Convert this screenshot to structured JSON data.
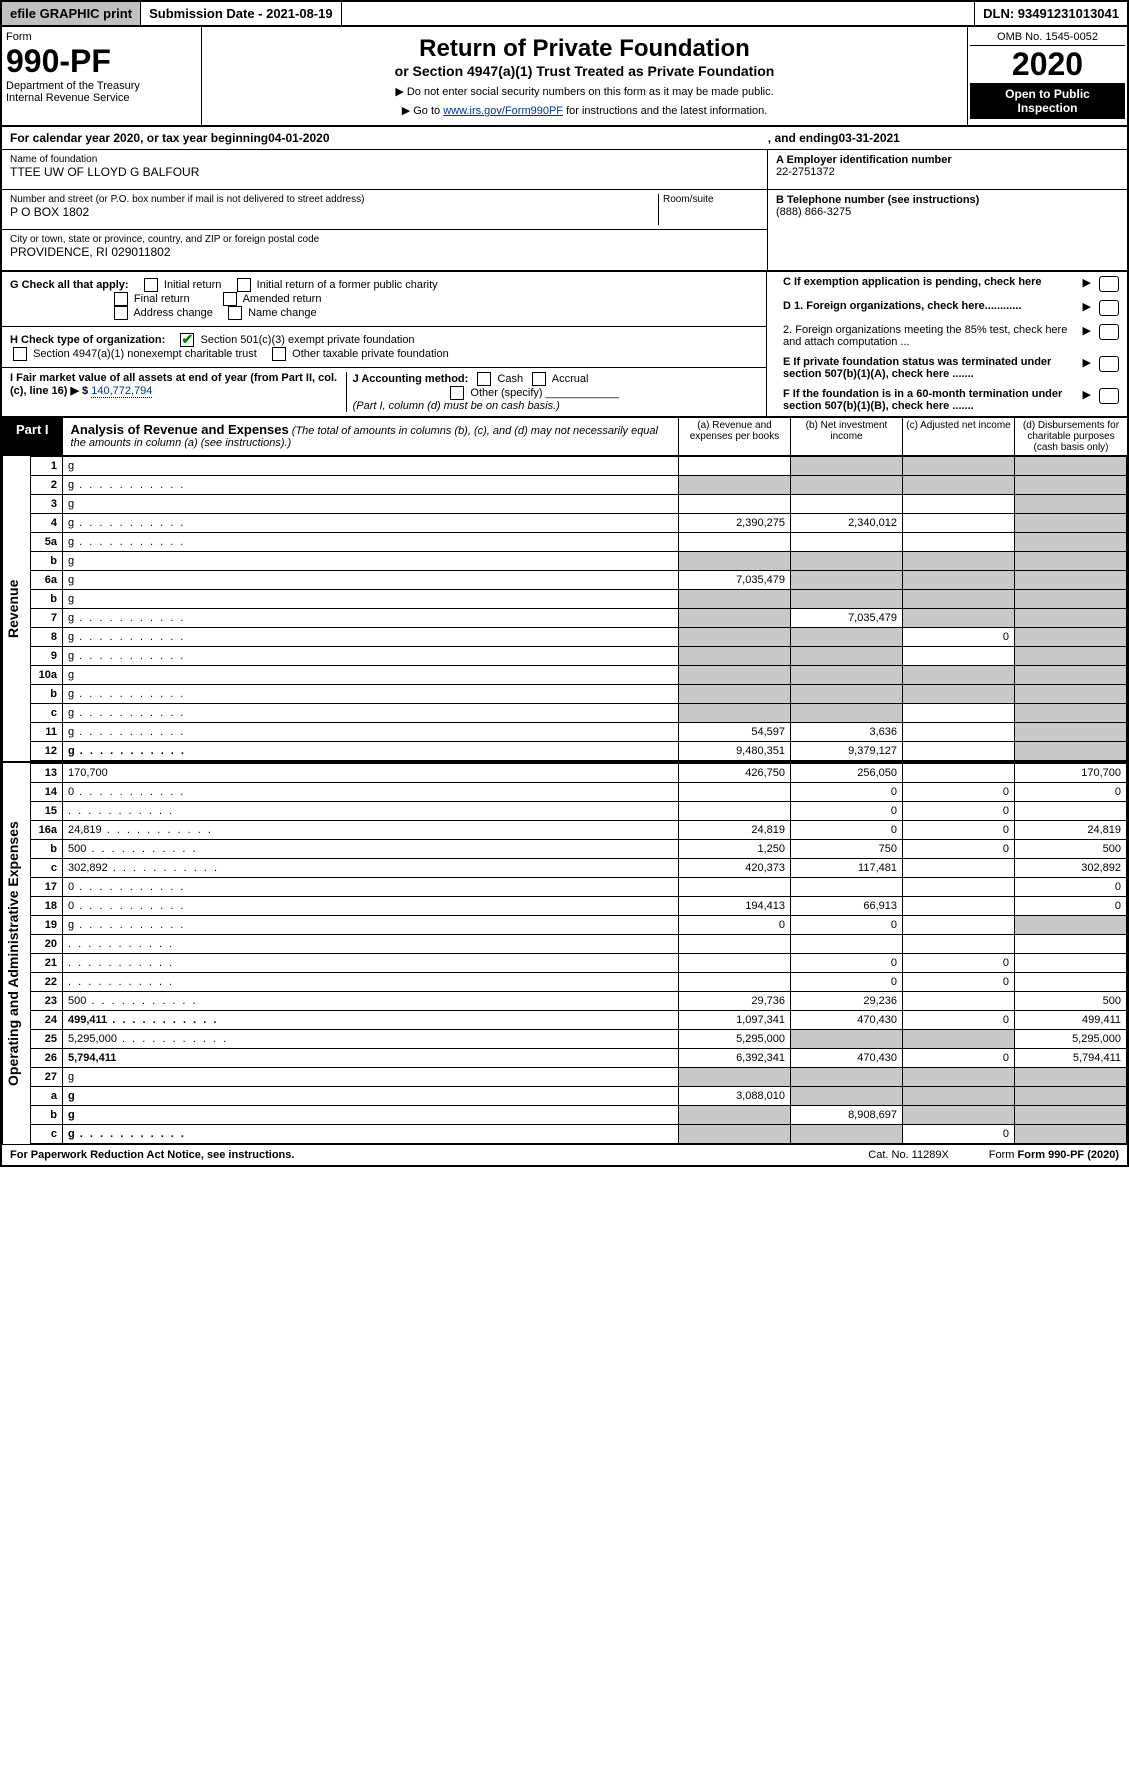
{
  "top": {
    "efile": "efile GRAPHIC print",
    "submission_label": "Submission Date - 2021-08-19",
    "dln": "DLN: 93491231013041"
  },
  "header": {
    "form_label": "Form",
    "form_num": "990-PF",
    "dept": "Department of the Treasury",
    "irs": "Internal Revenue Service",
    "title": "Return of Private Foundation",
    "subtitle": "or Section 4947(a)(1) Trust Treated as Private Foundation",
    "inst1": "▶ Do not enter social security numbers on this form as it may be made public.",
    "inst2_pre": "▶ Go to ",
    "inst2_link": "www.irs.gov/Form990PF",
    "inst2_post": " for instructions and the latest information.",
    "omb": "OMB No. 1545-0052",
    "year": "2020",
    "open": "Open to Public Inspection"
  },
  "calendar": {
    "pre": "For calendar year 2020, or tax year beginning ",
    "begin": "04-01-2020",
    "mid": " , and ending ",
    "end": "03-31-2021"
  },
  "name_block": {
    "label": "Name of foundation",
    "value": "TTEE UW OF LLOYD G BALFOUR",
    "addr_label": "Number and street (or P.O. box number if mail is not delivered to street address)",
    "addr": "P O BOX 1802",
    "room_label": "Room/suite",
    "city_label": "City or town, state or province, country, and ZIP or foreign postal code",
    "city": "PROVIDENCE, RI  029011802"
  },
  "boxA": {
    "label": "A Employer identification number",
    "value": "22-2751372"
  },
  "boxB": {
    "label": "B Telephone number (see instructions)",
    "value": "(888) 866-3275"
  },
  "boxC": "C If exemption application is pending, check here",
  "boxD1": "D 1. Foreign organizations, check here............",
  "boxD2": "2. Foreign organizations meeting the 85% test, check here and attach computation ...",
  "boxE": "E If private foundation status was terminated under section 507(b)(1)(A), check here .......",
  "boxF": "F If the foundation is in a 60-month termination under section 507(b)(1)(B), check here .......",
  "checkG": {
    "label": "G Check all that apply:",
    "opts": [
      "Initial return",
      "Initial return of a former public charity",
      "Final return",
      "Amended return",
      "Address change",
      "Name change"
    ]
  },
  "checkH": {
    "label": "H Check type of organization:",
    "opt1": "Section 501(c)(3) exempt private foundation",
    "opt2": "Section 4947(a)(1) nonexempt charitable trust",
    "opt3": "Other taxable private foundation"
  },
  "boxI": {
    "label": "I Fair market value of all assets at end of year (from Part II, col. (c), line 16) ▶ $",
    "value": "140,772,794"
  },
  "boxJ": {
    "label": "J Accounting method:",
    "cash": "Cash",
    "accrual": "Accrual",
    "other": "Other (specify)",
    "note": "(Part I, column (d) must be on cash basis.)"
  },
  "part1": {
    "tab": "Part I",
    "title": "Analysis of Revenue and Expenses",
    "note": " (The total of amounts in columns (b), (c), and (d) may not necessarily equal the amounts in column (a) (see instructions).)",
    "col_a": "(a) Revenue and expenses per books",
    "col_b": "(b) Net investment income",
    "col_c": "(c) Adjusted net income",
    "col_d": "(d) Disbursements for charitable purposes (cash basis only)"
  },
  "side_labels": {
    "revenue": "Revenue",
    "expenses": "Operating and Administrative Expenses"
  },
  "rows": [
    {
      "n": "1",
      "d": "g",
      "a": "",
      "b": "g",
      "c": "g"
    },
    {
      "n": "2",
      "d": "g",
      "a": "g",
      "b": "g",
      "c": "g",
      "dots": true
    },
    {
      "n": "3",
      "d": "g",
      "a": "",
      "b": "",
      "c": ""
    },
    {
      "n": "4",
      "d": "g",
      "a": "2,390,275",
      "b": "2,340,012",
      "c": "",
      "dots": true
    },
    {
      "n": "5a",
      "d": "g",
      "a": "",
      "b": "",
      "c": "",
      "dots": true
    },
    {
      "n": "b",
      "d": "g",
      "a": "g",
      "b": "g",
      "c": "g"
    },
    {
      "n": "6a",
      "d": "g",
      "a": "7,035,479",
      "b": "g",
      "c": "g"
    },
    {
      "n": "b",
      "d": "g",
      "a": "g",
      "b": "g",
      "c": "g"
    },
    {
      "n": "7",
      "d": "g",
      "a": "g",
      "b": "7,035,479",
      "c": "g",
      "dots": true
    },
    {
      "n": "8",
      "d": "g",
      "a": "g",
      "b": "g",
      "c": "0",
      "dots": true
    },
    {
      "n": "9",
      "d": "g",
      "a": "g",
      "b": "g",
      "c": "",
      "dots": true
    },
    {
      "n": "10a",
      "d": "g",
      "a": "g",
      "b": "g",
      "c": "g"
    },
    {
      "n": "b",
      "d": "g",
      "a": "g",
      "b": "g",
      "c": "g",
      "dots": true
    },
    {
      "n": "c",
      "d": "g",
      "a": "g",
      "b": "g",
      "c": "",
      "dots": true
    },
    {
      "n": "11",
      "d": "g",
      "a": "54,597",
      "b": "3,636",
      "c": "",
      "dots": true
    },
    {
      "n": "12",
      "d": "g",
      "a": "9,480,351",
      "b": "9,379,127",
      "c": "",
      "dots": true,
      "bold": true
    }
  ],
  "rows2": [
    {
      "n": "13",
      "d": "170,700",
      "a": "426,750",
      "b": "256,050",
      "c": ""
    },
    {
      "n": "14",
      "d": "0",
      "a": "",
      "b": "0",
      "c": "0",
      "dots": true
    },
    {
      "n": "15",
      "d": "",
      "a": "",
      "b": "0",
      "c": "0",
      "dots": true
    },
    {
      "n": "16a",
      "d": "24,819",
      "a": "24,819",
      "b": "0",
      "c": "0",
      "dots": true
    },
    {
      "n": "b",
      "d": "500",
      "a": "1,250",
      "b": "750",
      "c": "0",
      "dots": true
    },
    {
      "n": "c",
      "d": "302,892",
      "a": "420,373",
      "b": "117,481",
      "c": "",
      "dots": true
    },
    {
      "n": "17",
      "d": "0",
      "a": "",
      "b": "",
      "c": "",
      "dots": true
    },
    {
      "n": "18",
      "d": "0",
      "a": "194,413",
      "b": "66,913",
      "c": "",
      "dots": true
    },
    {
      "n": "19",
      "d": "g",
      "a": "0",
      "b": "0",
      "c": "",
      "dots": true
    },
    {
      "n": "20",
      "d": "",
      "a": "",
      "b": "",
      "c": "",
      "dots": true
    },
    {
      "n": "21",
      "d": "",
      "a": "",
      "b": "0",
      "c": "0",
      "dots": true
    },
    {
      "n": "22",
      "d": "",
      "a": "",
      "b": "0",
      "c": "0",
      "dots": true
    },
    {
      "n": "23",
      "d": "500",
      "a": "29,736",
      "b": "29,236",
      "c": "",
      "dots": true
    },
    {
      "n": "24",
      "d": "499,411",
      "a": "1,097,341",
      "b": "470,430",
      "c": "0",
      "dots": true,
      "bold": true
    },
    {
      "n": "25",
      "d": "5,295,000",
      "a": "5,295,000",
      "b": "g",
      "c": "g",
      "dots": true
    },
    {
      "n": "26",
      "d": "5,794,411",
      "a": "6,392,341",
      "b": "470,430",
      "c": "0",
      "bold": true
    },
    {
      "n": "27",
      "d": "g",
      "a": "g",
      "b": "g",
      "c": "g"
    },
    {
      "n": "a",
      "d": "g",
      "a": "3,088,010",
      "b": "g",
      "c": "g",
      "bold": true
    },
    {
      "n": "b",
      "d": "g",
      "a": "g",
      "b": "8,908,697",
      "c": "g",
      "bold": true
    },
    {
      "n": "c",
      "d": "g",
      "a": "g",
      "b": "g",
      "c": "0",
      "bold": true,
      "dots": true
    }
  ],
  "footer": {
    "left": "For Paperwork Reduction Act Notice, see instructions.",
    "mid": "Cat. No. 11289X",
    "right": "Form 990-PF (2020)"
  }
}
